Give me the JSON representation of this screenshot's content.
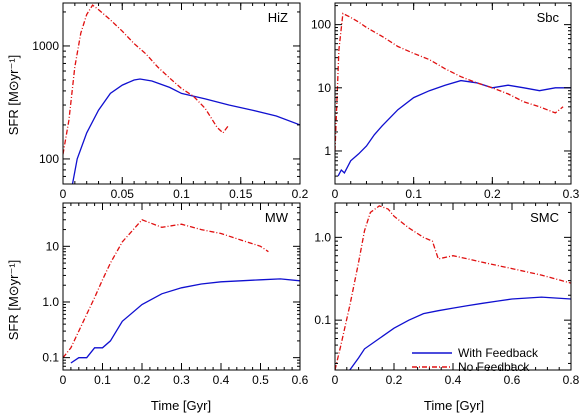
{
  "figure": {
    "ylabel": "SFR [M⊙yr⁻¹]",
    "xlabel": "Time [Gyr]",
    "legend": {
      "placement": "bottom-right of SMC panel",
      "entries": [
        {
          "label": "With Feedback",
          "color": "#1010d0",
          "style": "solid"
        },
        {
          "label": "No Feedback",
          "color": "#e01010",
          "style": "dash-dot"
        }
      ]
    }
  },
  "chart_data": [
    {
      "type": "line",
      "label": "HiZ",
      "yscale": "log",
      "xlim": [
        0,
        0.2
      ],
      "ylim": [
        60,
        2400
      ],
      "xticks": [
        0,
        0.05,
        0.1,
        0.15,
        0.2
      ],
      "xtick_labels": [
        "0",
        "0.05",
        "0.1",
        "0.15",
        "0.2"
      ],
      "yticks": [
        100,
        1000
      ],
      "ytick_labels": [
        "100",
        "1000"
      ],
      "series": [
        {
          "name": "With Feedback",
          "color": "#1010d0",
          "dash": "",
          "x": [
            0.008,
            0.012,
            0.02,
            0.03,
            0.04,
            0.05,
            0.06,
            0.065,
            0.075,
            0.09,
            0.1,
            0.12,
            0.14,
            0.16,
            0.18,
            0.2
          ],
          "y": [
            60,
            100,
            170,
            270,
            380,
            450,
            500,
            510,
            490,
            430,
            380,
            340,
            300,
            270,
            240,
            200
          ]
        },
        {
          "name": "No Feedback",
          "color": "#e01010",
          "dash": "5,2,1,2",
          "x": [
            0,
            0.005,
            0.01,
            0.015,
            0.02,
            0.025,
            0.03,
            0.04,
            0.05,
            0.06,
            0.07,
            0.08,
            0.09,
            0.1,
            0.11,
            0.12,
            0.13,
            0.135,
            0.14
          ],
          "y": [
            110,
            220,
            650,
            1300,
            1900,
            2300,
            2100,
            1700,
            1350,
            1050,
            850,
            650,
            520,
            420,
            360,
            280,
            190,
            170,
            200
          ]
        }
      ]
    },
    {
      "type": "line",
      "label": "Sbc",
      "yscale": "log",
      "xlim": [
        0,
        0.3
      ],
      "ylim": [
        0.3,
        220
      ],
      "xticks": [
        0,
        0.1,
        0.2,
        0.3
      ],
      "xtick_labels": [
        "0",
        "0.1",
        "0.2",
        "0.3"
      ],
      "yticks": [
        1,
        10,
        100
      ],
      "ytick_labels": [
        "1",
        "10",
        "100"
      ],
      "series": [
        {
          "name": "With Feedback",
          "color": "#1010d0",
          "dash": "",
          "x": [
            0.004,
            0.008,
            0.012,
            0.02,
            0.03,
            0.04,
            0.05,
            0.06,
            0.08,
            0.1,
            0.12,
            0.14,
            0.16,
            0.18,
            0.2,
            0.22,
            0.24,
            0.26,
            0.28,
            0.3
          ],
          "y": [
            0.4,
            0.5,
            0.45,
            0.7,
            0.9,
            1.2,
            1.8,
            2.5,
            4.5,
            7,
            9,
            11,
            13,
            12,
            10,
            11,
            10,
            9,
            10,
            10
          ]
        },
        {
          "name": "No Feedback",
          "color": "#e01010",
          "dash": "5,2,1,2",
          "x": [
            0,
            0.005,
            0.01,
            0.02,
            0.03,
            0.04,
            0.06,
            0.08,
            0.1,
            0.12,
            0.14,
            0.16,
            0.18,
            0.2,
            0.22,
            0.24,
            0.26,
            0.28,
            0.29
          ],
          "y": [
            1,
            40,
            150,
            130,
            110,
            90,
            65,
            45,
            35,
            28,
            20,
            15,
            12,
            10,
            8,
            6,
            5,
            4,
            5
          ]
        }
      ]
    },
    {
      "type": "line",
      "label": "MW",
      "yscale": "log",
      "xlim": [
        0,
        0.6
      ],
      "ylim": [
        0.06,
        60
      ],
      "xticks": [
        0,
        0.1,
        0.2,
        0.3,
        0.4,
        0.5,
        0.6
      ],
      "xtick_labels": [
        "0",
        "0.1",
        "0.2",
        "0.3",
        "0.4",
        "0.5",
        "0.6"
      ],
      "yticks": [
        0.1,
        1,
        10
      ],
      "ytick_labels": [
        "0.1",
        "1.0",
        "10"
      ],
      "series": [
        {
          "name": "With Feedback",
          "color": "#1010d0",
          "dash": "",
          "x": [
            0.02,
            0.04,
            0.06,
            0.08,
            0.1,
            0.12,
            0.15,
            0.2,
            0.25,
            0.3,
            0.35,
            0.4,
            0.45,
            0.5,
            0.55,
            0.6
          ],
          "y": [
            0.08,
            0.1,
            0.1,
            0.15,
            0.15,
            0.2,
            0.45,
            0.9,
            1.4,
            1.8,
            2.1,
            2.3,
            2.4,
            2.5,
            2.6,
            2.4
          ]
        },
        {
          "name": "No Feedback",
          "color": "#e01010",
          "dash": "5,2,1,2",
          "x": [
            0,
            0.02,
            0.04,
            0.06,
            0.08,
            0.1,
            0.12,
            0.15,
            0.2,
            0.25,
            0.3,
            0.35,
            0.4,
            0.45,
            0.5,
            0.52
          ],
          "y": [
            0.1,
            0.15,
            0.3,
            0.6,
            1.2,
            2.5,
            5,
            12,
            30,
            22,
            25,
            20,
            17,
            13,
            10,
            8
          ]
        }
      ]
    },
    {
      "type": "line",
      "label": "SMC",
      "yscale": "log",
      "xlim": [
        0,
        0.8
      ],
      "ylim": [
        0.025,
        2.6
      ],
      "xticks": [
        0,
        0.2,
        0.4,
        0.6,
        0.8
      ],
      "xtick_labels": [
        "0",
        "0.2",
        "0.4",
        "0.6",
        "0.8"
      ],
      "yticks": [
        0.1,
        1
      ],
      "ytick_labels": [
        "0.1",
        "1.0"
      ],
      "series": [
        {
          "name": "With Feedback",
          "color": "#1010d0",
          "dash": "",
          "x": [
            0.05,
            0.08,
            0.1,
            0.15,
            0.2,
            0.25,
            0.3,
            0.35,
            0.4,
            0.45,
            0.5,
            0.55,
            0.6,
            0.7,
            0.8
          ],
          "y": [
            0.025,
            0.035,
            0.045,
            0.06,
            0.08,
            0.1,
            0.12,
            0.13,
            0.14,
            0.15,
            0.16,
            0.17,
            0.18,
            0.19,
            0.18
          ]
        },
        {
          "name": "No Feedback",
          "color": "#e01010",
          "dash": "5,2,1,2",
          "x": [
            0,
            0.02,
            0.05,
            0.08,
            0.1,
            0.12,
            0.15,
            0.18,
            0.2,
            0.25,
            0.3,
            0.33,
            0.35,
            0.4,
            0.45,
            0.5,
            0.6,
            0.7,
            0.8
          ],
          "y": [
            0.025,
            0.05,
            0.15,
            0.5,
            1.2,
            2.0,
            2.4,
            2.2,
            1.8,
            1.3,
            1.0,
            0.9,
            0.55,
            0.6,
            0.55,
            0.5,
            0.42,
            0.35,
            0.28
          ]
        }
      ]
    }
  ]
}
